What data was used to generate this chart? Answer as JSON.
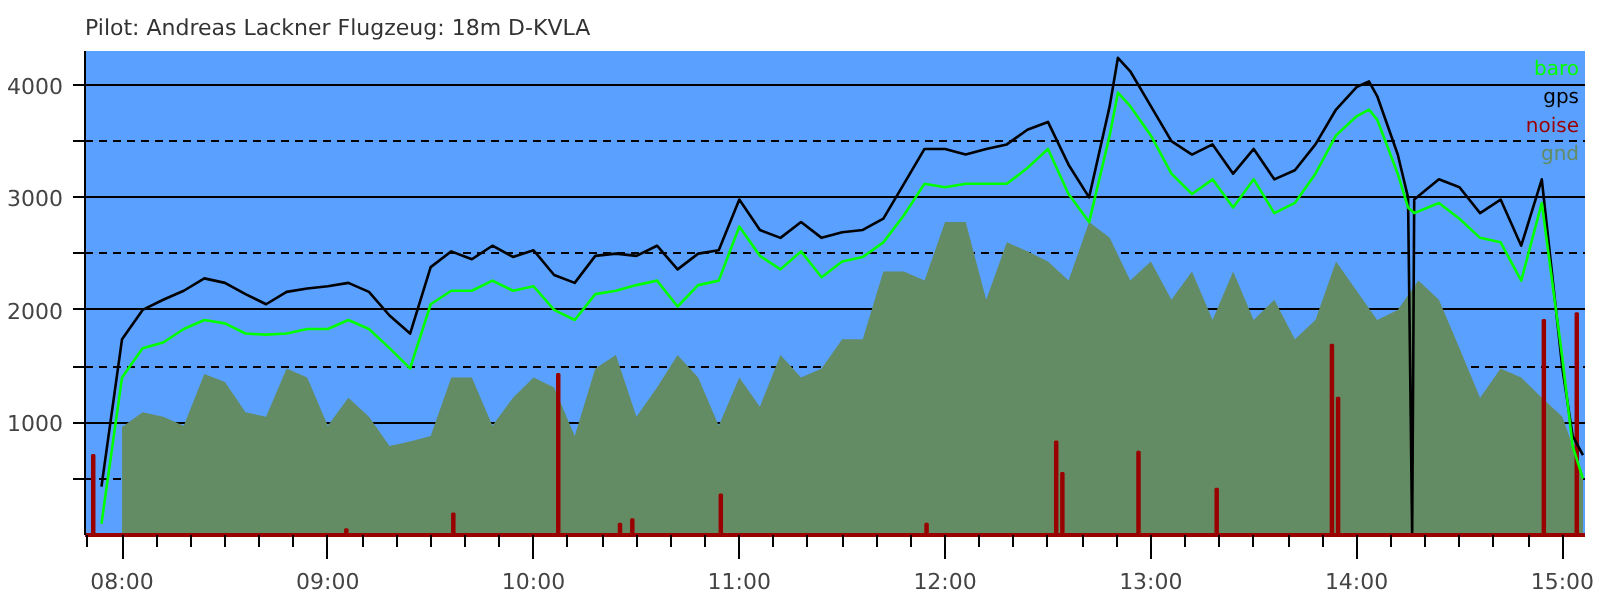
{
  "chart_data": {
    "type": "line",
    "title": "Pilot: Andreas Lackner Flugzeug: 18m D-KVLA",
    "xlim": [
      7.82,
      15.11
    ],
    "ylim": [
      0,
      4300
    ],
    "xticks": [
      {
        "value": 8,
        "label": "08:00"
      },
      {
        "value": 9,
        "label": "09:00"
      },
      {
        "value": 10,
        "label": "10:00"
      },
      {
        "value": 11,
        "label": "11:00"
      },
      {
        "value": 12,
        "label": "12:00"
      },
      {
        "value": 13,
        "label": "13:00"
      },
      {
        "value": 14,
        "label": "14:00"
      },
      {
        "value": 15,
        "label": "15:00"
      }
    ],
    "yticks": [
      {
        "value": 500,
        "label": null
      },
      1000,
      {
        "value": 1500,
        "label": null
      },
      2000,
      {
        "value": 2500,
        "label": null
      },
      3000,
      {
        "value": 3500,
        "label": null
      },
      4000
    ],
    "grid": "y",
    "legend": "top right",
    "series": [
      {
        "name": "gnd",
        "type": "area",
        "color": "#648c64",
        "x": [
          8.0,
          8.1,
          8.2,
          8.3,
          8.4,
          8.5,
          8.6,
          8.7,
          8.8,
          8.9,
          9.0,
          9.1,
          9.2,
          9.3,
          9.4,
          9.5,
          9.6,
          9.7,
          9.8,
          9.9,
          10.0,
          10.1,
          10.2,
          10.3,
          10.4,
          10.5,
          10.6,
          10.7,
          10.8,
          10.9,
          11.0,
          11.1,
          11.2,
          11.3,
          11.4,
          11.5,
          11.6,
          11.7,
          11.8,
          11.9,
          12.0,
          12.1,
          12.2,
          12.3,
          12.4,
          12.5,
          12.6,
          12.7,
          12.8,
          12.9,
          13.0,
          13.1,
          13.2,
          13.3,
          13.4,
          13.5,
          13.6,
          13.7,
          13.8,
          13.9,
          14.0,
          14.1,
          14.2,
          14.3,
          14.4,
          14.5,
          14.6,
          14.7,
          14.8,
          14.9,
          15.0,
          15.1
        ],
        "values": [
          960,
          1090,
          1050,
          970,
          1430,
          1360,
          1090,
          1050,
          1480,
          1400,
          970,
          1220,
          1050,
          790,
          830,
          880,
          1400,
          1400,
          970,
          1220,
          1400,
          1310,
          880,
          1480,
          1600,
          1050,
          1310,
          1600,
          1400,
          970,
          1400,
          1140,
          1600,
          1400,
          1480,
          1740,
          1740,
          2340,
          2340,
          2260,
          2780,
          2780,
          2090,
          2600,
          2520,
          2430,
          2260,
          2780,
          2640,
          2260,
          2430,
          2090,
          2340,
          1910,
          2340,
          1910,
          2090,
          1740,
          1910,
          2430,
          2170,
          1910,
          2000,
          2260,
          2090,
          1660,
          1220,
          1480,
          1400,
          1220,
          1050,
          530
        ]
      },
      {
        "name": "noise",
        "type": "bar",
        "color": "#990000",
        "x": [
          7.86,
          9.09,
          9.61,
          10.12,
          10.42,
          10.48,
          10.91,
          11.91,
          12.54,
          12.57,
          12.94,
          13.32,
          13.88,
          13.91,
          14.91,
          15.07
        ],
        "values": [
          710,
          50,
          190,
          1430,
          100,
          140,
          360,
          100,
          830,
          550,
          740,
          410,
          1690,
          1220,
          1910,
          1970
        ]
      },
      {
        "name": "gps",
        "color": "#000000",
        "x": [
          7.9,
          8.0,
          8.1,
          8.2,
          8.3,
          8.4,
          8.5,
          8.6,
          8.7,
          8.8,
          8.9,
          9.0,
          9.1,
          9.2,
          9.3,
          9.4,
          9.5,
          9.6,
          9.7,
          9.8,
          9.9,
          10.0,
          10.1,
          10.2,
          10.3,
          10.4,
          10.5,
          10.6,
          10.7,
          10.8,
          10.9,
          11.0,
          11.1,
          11.2,
          11.3,
          11.4,
          11.5,
          11.6,
          11.7,
          11.8,
          11.9,
          12.0,
          12.1,
          12.2,
          12.3,
          12.4,
          12.5,
          12.6,
          12.7,
          12.8,
          12.84,
          12.9,
          13.0,
          13.1,
          13.2,
          13.3,
          13.4,
          13.5,
          13.6,
          13.7,
          13.8,
          13.9,
          14.0,
          14.06,
          14.1,
          14.2,
          14.25,
          14.27,
          14.28,
          14.4,
          14.5,
          14.6,
          14.7,
          14.8,
          14.9,
          15.0,
          15.05,
          15.1
        ],
        "values": [
          430,
          1740,
          2000,
          2090,
          2170,
          2280,
          2240,
          2140,
          2050,
          2160,
          2190,
          2210,
          2240,
          2160,
          1950,
          1790,
          2380,
          2520,
          2450,
          2570,
          2470,
          2530,
          2310,
          2240,
          2480,
          2500,
          2480,
          2570,
          2360,
          2500,
          2530,
          2980,
          2710,
          2640,
          2780,
          2640,
          2690,
          2710,
          2810,
          3120,
          3430,
          3430,
          3380,
          3430,
          3470,
          3600,
          3670,
          3290,
          3000,
          3810,
          4240,
          4120,
          3810,
          3500,
          3380,
          3470,
          3210,
          3430,
          3160,
          3240,
          3470,
          3780,
          3980,
          4030,
          3900,
          3380,
          3000,
          0,
          2980,
          3160,
          3090,
          2860,
          2980,
          2570,
          3160,
          1480,
          880,
          710
        ]
      },
      {
        "name": "baro",
        "color": "#00ff00",
        "x": [
          7.9,
          8.0,
          8.1,
          8.2,
          8.3,
          8.4,
          8.5,
          8.6,
          8.7,
          8.8,
          8.9,
          9.0,
          9.1,
          9.2,
          9.3,
          9.4,
          9.5,
          9.6,
          9.7,
          9.8,
          9.9,
          10.0,
          10.1,
          10.2,
          10.3,
          10.4,
          10.5,
          10.6,
          10.7,
          10.8,
          10.9,
          11.0,
          11.1,
          11.2,
          11.3,
          11.4,
          11.5,
          11.6,
          11.7,
          11.8,
          11.9,
          12.0,
          12.1,
          12.2,
          12.3,
          12.4,
          12.5,
          12.6,
          12.7,
          12.8,
          12.84,
          12.9,
          13.0,
          13.1,
          13.2,
          13.3,
          13.4,
          13.5,
          13.6,
          13.7,
          13.8,
          13.9,
          14.0,
          14.06,
          14.1,
          14.2,
          14.25,
          14.28,
          14.4,
          14.5,
          14.6,
          14.7,
          14.8,
          14.9,
          15.0,
          15.05,
          15.1
        ],
        "values": [
          100,
          1400,
          1660,
          1710,
          1830,
          1910,
          1880,
          1790,
          1780,
          1790,
          1830,
          1830,
          1910,
          1830,
          1660,
          1480,
          2050,
          2170,
          2170,
          2260,
          2170,
          2210,
          2000,
          1910,
          2140,
          2170,
          2220,
          2260,
          2030,
          2220,
          2260,
          2740,
          2480,
          2360,
          2520,
          2290,
          2430,
          2470,
          2600,
          2840,
          3120,
          3090,
          3120,
          3120,
          3120,
          3260,
          3430,
          3030,
          2780,
          3550,
          3930,
          3810,
          3550,
          3210,
          3030,
          3160,
          2910,
          3160,
          2860,
          2950,
          3210,
          3550,
          3720,
          3780,
          3690,
          3210,
          2910,
          2860,
          2950,
          2810,
          2640,
          2600,
          2260,
          2950,
          1570,
          790,
          500
        ]
      }
    ]
  }
}
